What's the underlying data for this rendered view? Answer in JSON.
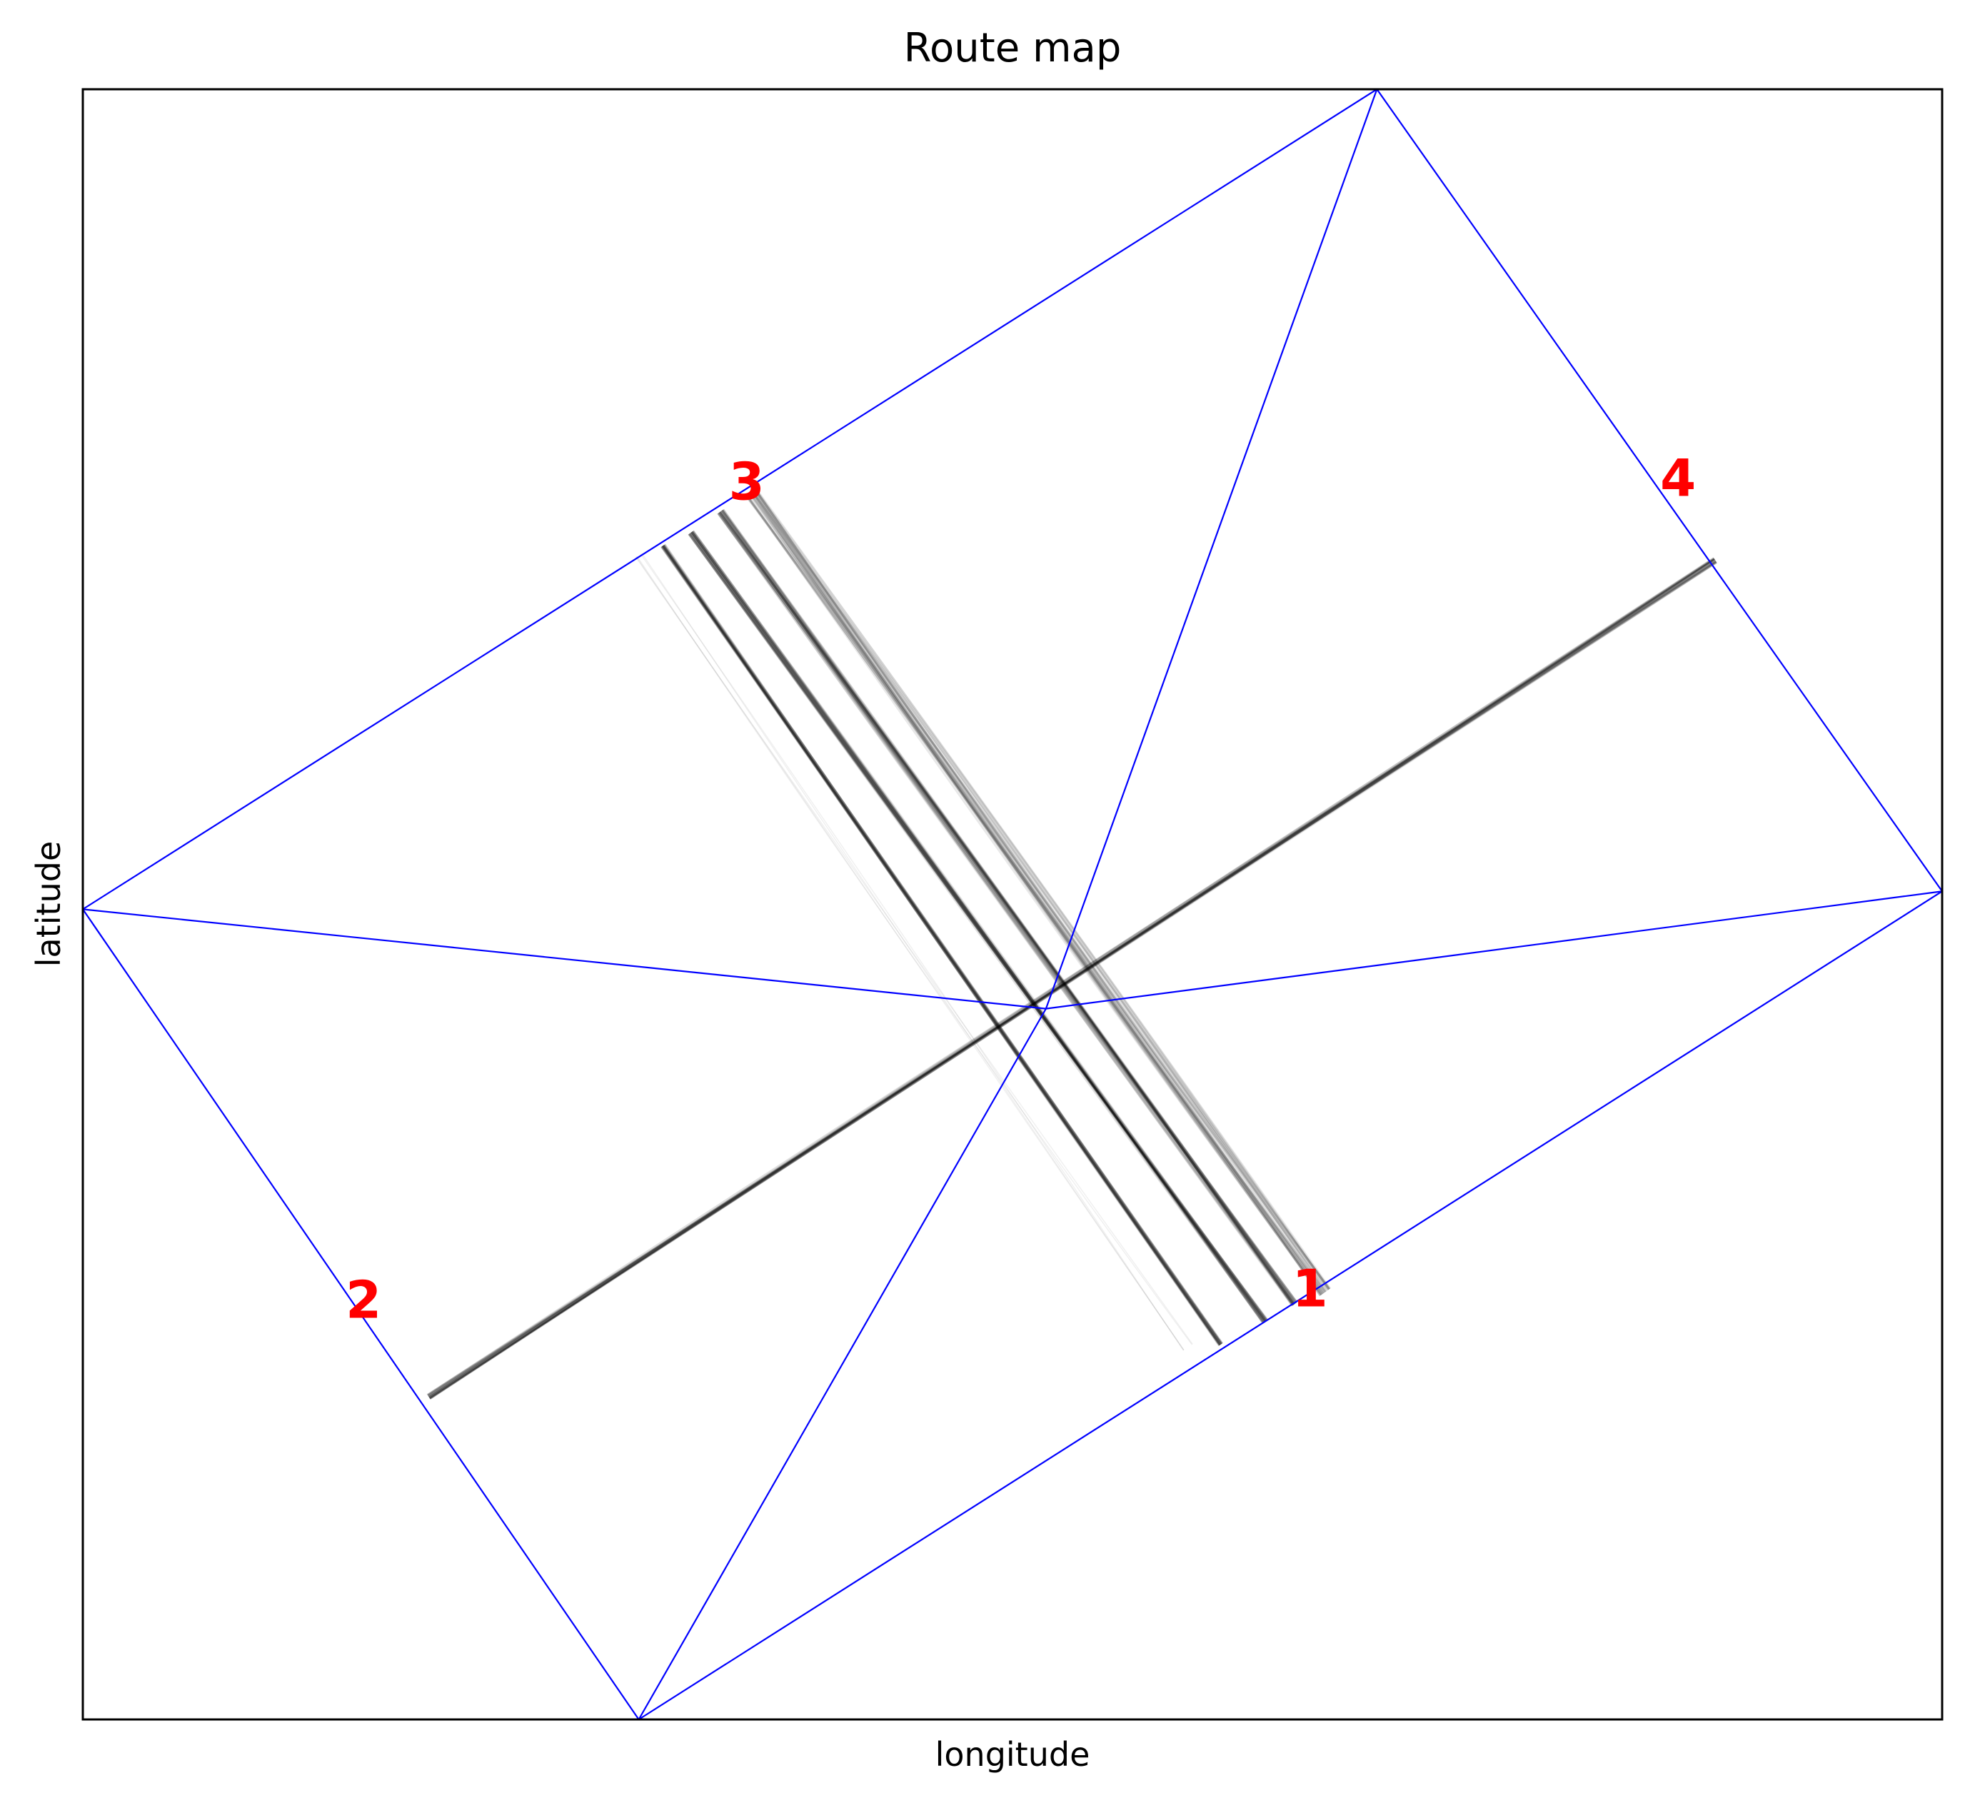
{
  "chart_data": {
    "type": "line",
    "title": "Route map",
    "xlabel": "longitude",
    "ylabel": "latitude",
    "xlim": [
      0,
      1000
    ],
    "ylim": [
      0,
      1000
    ],
    "grid": false,
    "ticks": false,
    "boundary_color": "#0000ff",
    "label_color": "#ff0000",
    "track_color": "#000000",
    "boundary_nodes": [
      {
        "id": "A",
        "x": 0,
        "y": 497
      },
      {
        "id": "B",
        "x": 696,
        "y": 1000
      },
      {
        "id": "C",
        "x": 1000,
        "y": 508
      },
      {
        "id": "D",
        "x": 299,
        "y": 0
      },
      {
        "id": "E",
        "x": 518,
        "y": 436
      }
    ],
    "boundary_edges": [
      [
        "A",
        "B"
      ],
      [
        "B",
        "C"
      ],
      [
        "C",
        "D"
      ],
      [
        "D",
        "A"
      ],
      [
        "A",
        "E"
      ],
      [
        "E",
        "C"
      ],
      [
        "B",
        "E"
      ],
      [
        "E",
        "D"
      ]
    ],
    "exit_labels": [
      {
        "text": "1",
        "x": 660,
        "y": 262
      },
      {
        "text": "2",
        "x": 151,
        "y": 255
      },
      {
        "text": "3",
        "x": 357,
        "y": 757
      },
      {
        "text": "4",
        "x": 858,
        "y": 759
      }
    ],
    "track_bundles": [
      {
        "from": [
          312,
          720
        ],
        "to": [
          612,
          230
        ],
        "tracks": 18,
        "spread": 3,
        "alpha": 0.12,
        "width": 3
      },
      {
        "from": [
          327,
          728
        ],
        "to": [
          636,
          244
        ],
        "tracks": 22,
        "spread": 4,
        "alpha": 0.12,
        "width": 3
      },
      {
        "from": [
          343,
          741
        ],
        "to": [
          652,
          255
        ],
        "tracks": 26,
        "spread": 5,
        "alpha": 0.1,
        "width": 3
      },
      {
        "from": [
          360,
          752
        ],
        "to": [
          668,
          262
        ],
        "tracks": 28,
        "spread": 9,
        "alpha": 0.09,
        "width": 3
      },
      {
        "from": [
          186,
          198
        ],
        "to": [
          878,
          711
        ],
        "tracks": 24,
        "spread": 4,
        "alpha": 0.12,
        "width": 2.5
      },
      {
        "from": [
          300,
          715
        ],
        "to": [
          594,
          228
        ],
        "tracks": 5,
        "spread": 10,
        "alpha": 0.06,
        "width": 1.5
      }
    ]
  }
}
